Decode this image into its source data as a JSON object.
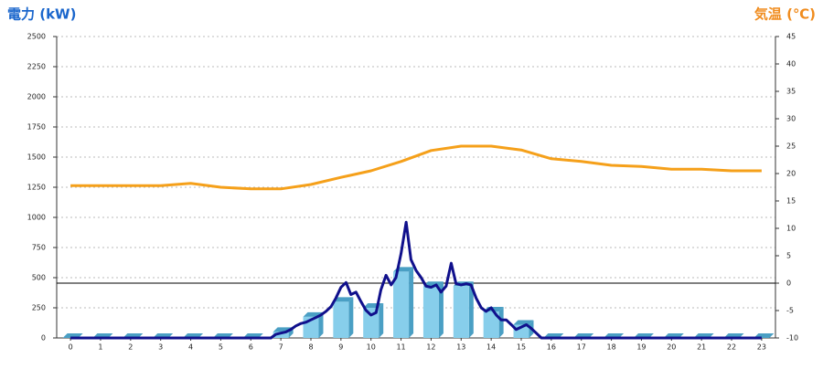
{
  "chart_data": {
    "type": "combo",
    "title": "電力 (kW)",
    "y2_title": "気温 (℃)",
    "title_color": "#1a66cc",
    "y2_title_color": "#f08c1e",
    "xlim": [
      -0.46,
      23.46
    ],
    "xticks": [
      0,
      1,
      2,
      3,
      4,
      5,
      6,
      7,
      8,
      9,
      10,
      11,
      12,
      13,
      14,
      15,
      16,
      17,
      18,
      19,
      20,
      21,
      22,
      23
    ],
    "ylim": [
      0,
      2500
    ],
    "yticks": [
      0,
      250,
      500,
      750,
      1000,
      1250,
      1500,
      1750,
      2000,
      2250,
      2500
    ],
    "y2lim": [
      -10,
      45
    ],
    "y2ticks": [
      -10,
      -5,
      0,
      5,
      10,
      15,
      20,
      25,
      30,
      35,
      40,
      45
    ],
    "y2_reference": 0,
    "grid": true,
    "series": [
      {
        "type": "bar",
        "color": "#87ceeb",
        "side_color": "#4a9fc4",
        "x": [
          0,
          1,
          2,
          3,
          4,
          5,
          6,
          7,
          8,
          9,
          10,
          11,
          12,
          13,
          14,
          15,
          16,
          17,
          18,
          19,
          20,
          21,
          22,
          23
        ],
        "values": [
          0,
          0,
          0,
          0,
          0,
          0,
          0,
          50,
          175,
          300,
          250,
          550,
          430,
          430,
          220,
          110,
          0,
          0,
          0,
          0,
          0,
          0,
          0,
          0
        ]
      },
      {
        "type": "line",
        "color": "#10108c",
        "x": [
          0,
          6.67,
          6.83,
          7,
          7.17,
          7.33,
          7.5,
          7.67,
          7.83,
          8,
          8.17,
          8.33,
          8.5,
          8.67,
          8.83,
          9,
          9.17,
          9.33,
          9.5,
          9.67,
          9.83,
          10,
          10.17,
          10.33,
          10.5,
          10.67,
          10.83,
          11,
          11.17,
          11.33,
          11.5,
          11.67,
          11.83,
          12,
          12.17,
          12.33,
          12.5,
          12.67,
          12.83,
          13,
          13.17,
          13.33,
          13.5,
          13.67,
          13.83,
          14,
          14.17,
          14.33,
          14.5,
          14.67,
          14.83,
          15,
          15.17,
          15.33,
          15.5,
          15.67,
          16,
          23
        ],
        "values": [
          0,
          0,
          30,
          40,
          50,
          70,
          100,
          120,
          130,
          150,
          170,
          190,
          220,
          260,
          330,
          420,
          460,
          360,
          380,
          300,
          230,
          190,
          210,
          400,
          520,
          440,
          500,
          700,
          960,
          650,
          560,
          500,
          430,
          420,
          440,
          380,
          430,
          620,
          450,
          440,
          450,
          440,
          330,
          250,
          220,
          250,
          190,
          150,
          150,
          110,
          70,
          90,
          110,
          80,
          40,
          0,
          0,
          0
        ]
      },
      {
        "type": "line",
        "axis": "y2",
        "color": "#f5a01a",
        "x": [
          0,
          1,
          2,
          3,
          4,
          5,
          6,
          7,
          8,
          9,
          10,
          11,
          12,
          13,
          14,
          15,
          16,
          17,
          18,
          19,
          20,
          21,
          22,
          23
        ],
        "values": [
          17.8,
          17.8,
          17.8,
          17.8,
          18.2,
          17.5,
          17.2,
          17.2,
          18,
          19.3,
          20.5,
          22.2,
          24.2,
          25,
          25,
          24.3,
          22.7,
          22.2,
          21.5,
          21.3,
          20.8,
          20.8,
          20.5,
          20.5
        ]
      }
    ]
  }
}
